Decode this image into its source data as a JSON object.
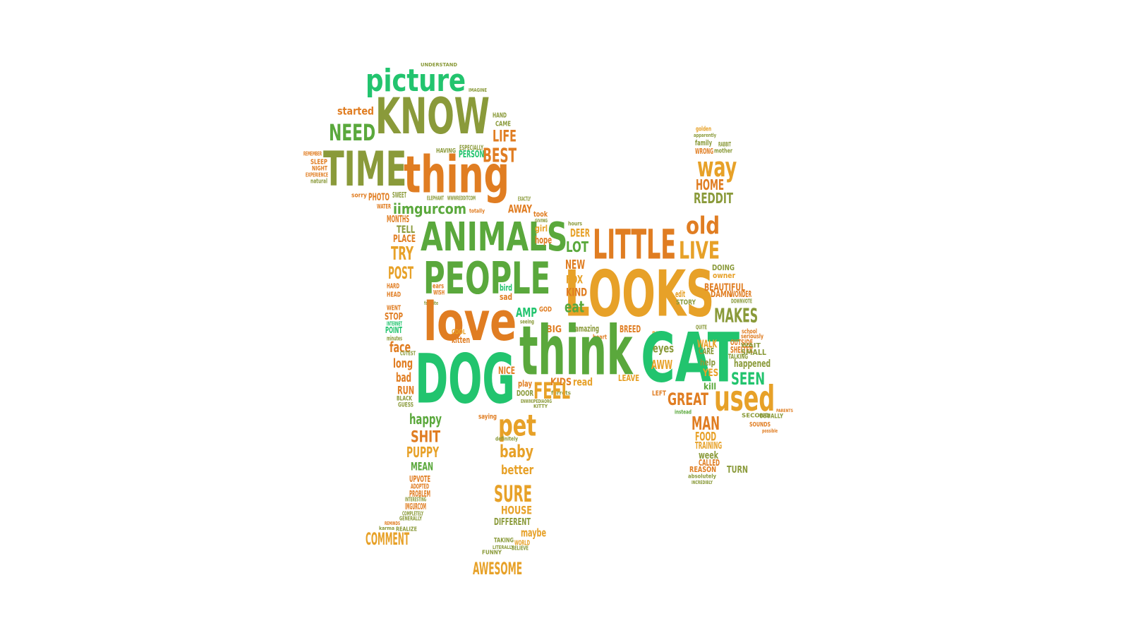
{
  "colors": {
    "background": "#ffffff",
    "green": "#5aa83c",
    "teal": "#22c46e",
    "orange": "#e07d22",
    "olive": "#8a9a3a",
    "amber": "#e7a128"
  },
  "words": [
    {
      "text": "UNDERSTAND",
      "color": "olive"
    },
    {
      "text": "picture",
      "color": "teal"
    },
    {
      "text": "IMAGINE",
      "color": "olive"
    },
    {
      "text": "started",
      "color": "orange"
    },
    {
      "text": "KNOW",
      "color": "olive"
    },
    {
      "text": "HAND",
      "color": "olive"
    },
    {
      "text": "CAME",
      "color": "olive"
    },
    {
      "text": "NEED",
      "color": "green"
    },
    {
      "text": "LIFE",
      "color": "orange"
    },
    {
      "text": "TIME",
      "color": "olive"
    },
    {
      "text": "thing",
      "color": "orange"
    },
    {
      "text": "BEST",
      "color": "orange"
    },
    {
      "text": "HAVING",
      "color": "olive"
    },
    {
      "text": "ESPECIALLY",
      "color": "olive"
    },
    {
      "text": "PERSON",
      "color": "teal"
    },
    {
      "text": "REMEMBER",
      "color": "orange"
    },
    {
      "text": "SLEEP",
      "color": "orange"
    },
    {
      "text": "NIGHT",
      "color": "orange"
    },
    {
      "text": "EXPERIENCE",
      "color": "orange"
    },
    {
      "text": "natural",
      "color": "olive"
    },
    {
      "text": "sorry",
      "color": "orange"
    },
    {
      "text": "PHOTO",
      "color": "orange"
    },
    {
      "text": "SWEET",
      "color": "olive"
    },
    {
      "text": "ELEPHANT",
      "color": "olive"
    },
    {
      "text": "WWWREDDITCOM",
      "color": "olive"
    },
    {
      "text": "WATER",
      "color": "orange"
    },
    {
      "text": "iimgurcom",
      "color": "green"
    },
    {
      "text": "totally",
      "color": "orange"
    },
    {
      "text": "EXACTLY",
      "color": "olive"
    },
    {
      "text": "AWAY",
      "color": "orange"
    },
    {
      "text": "MONTHS",
      "color": "orange"
    },
    {
      "text": "TELL",
      "color": "olive"
    },
    {
      "text": "PLACE",
      "color": "orange"
    },
    {
      "text": "ANIMALS",
      "color": "green"
    },
    {
      "text": "took",
      "color": "orange"
    },
    {
      "text": "GIVING",
      "color": "olive"
    },
    {
      "text": "girl",
      "color": "amber"
    },
    {
      "text": "hope",
      "color": "orange"
    },
    {
      "text": "hours",
      "color": "olive"
    },
    {
      "text": "DEER",
      "color": "amber"
    },
    {
      "text": "LOT",
      "color": "green"
    },
    {
      "text": "LITTLE",
      "color": "orange"
    },
    {
      "text": "LIVE",
      "color": "amber"
    },
    {
      "text": "old",
      "color": "orange"
    },
    {
      "text": "TRY",
      "color": "amber"
    },
    {
      "text": "POST",
      "color": "amber"
    },
    {
      "text": "PEOPLE",
      "color": "green"
    },
    {
      "text": "NEW",
      "color": "orange"
    },
    {
      "text": "LOOKS",
      "color": "amber"
    },
    {
      "text": "HARD",
      "color": "orange"
    },
    {
      "text": "HEAD",
      "color": "orange"
    },
    {
      "text": "ears",
      "color": "orange"
    },
    {
      "text": "WISH",
      "color": "orange"
    },
    {
      "text": "favorite",
      "color": "olive"
    },
    {
      "text": "bird",
      "color": "teal"
    },
    {
      "text": "sad",
      "color": "orange"
    },
    {
      "text": "FOX",
      "color": "amber"
    },
    {
      "text": "KIND",
      "color": "orange"
    },
    {
      "text": "eat",
      "color": "green"
    },
    {
      "text": "WENT",
      "color": "orange"
    },
    {
      "text": "STOP",
      "color": "orange"
    },
    {
      "text": "INTERNET",
      "color": "teal"
    },
    {
      "text": "POINT",
      "color": "teal"
    },
    {
      "text": "minutes",
      "color": "olive"
    },
    {
      "text": "love",
      "color": "orange"
    },
    {
      "text": "AMP",
      "color": "teal"
    },
    {
      "text": "GOD",
      "color": "orange"
    },
    {
      "text": "seeing",
      "color": "olive"
    },
    {
      "text": "face",
      "color": "orange"
    },
    {
      "text": "CUTEST",
      "color": "olive"
    },
    {
      "text": "COOL",
      "color": "amber"
    },
    {
      "text": "kitten",
      "color": "orange"
    },
    {
      "text": "BIG",
      "color": "orange"
    },
    {
      "text": "amazing",
      "color": "olive"
    },
    {
      "text": "heart",
      "color": "orange"
    },
    {
      "text": "think",
      "color": "green"
    },
    {
      "text": "BREED",
      "color": "orange"
    },
    {
      "text": "long",
      "color": "orange"
    },
    {
      "text": "DOG",
      "color": "teal"
    },
    {
      "text": "REAL",
      "color": "amber"
    },
    {
      "text": "CAT",
      "color": "teal"
    },
    {
      "text": "QUITE",
      "color": "olive"
    },
    {
      "text": "bad",
      "color": "orange"
    },
    {
      "text": "RUN",
      "color": "orange"
    },
    {
      "text": "NICE",
      "color": "orange"
    },
    {
      "text": "play",
      "color": "orange"
    },
    {
      "text": "DOOR",
      "color": "olive"
    },
    {
      "text": "KIDS",
      "color": "orange"
    },
    {
      "text": "read",
      "color": "amber"
    },
    {
      "text": "ferrets",
      "color": "olive"
    },
    {
      "text": "LEAVE",
      "color": "amber"
    },
    {
      "text": "BLACK",
      "color": "olive"
    },
    {
      "text": "GUESS",
      "color": "olive"
    },
    {
      "text": "FEEL",
      "color": "amber"
    },
    {
      "text": "ENWIKIPEDIAORG",
      "color": "olive"
    },
    {
      "text": "KITTY",
      "color": "olive"
    },
    {
      "text": "happy",
      "color": "green"
    },
    {
      "text": "saying",
      "color": "orange"
    },
    {
      "text": "pet",
      "color": "amber"
    },
    {
      "text": "SHIT",
      "color": "orange"
    },
    {
      "text": "definitely",
      "color": "olive"
    },
    {
      "text": "PUPPY",
      "color": "amber"
    },
    {
      "text": "baby",
      "color": "amber"
    },
    {
      "text": "MEAN",
      "color": "green"
    },
    {
      "text": "better",
      "color": "amber"
    },
    {
      "text": "UPVOTE",
      "color": "orange"
    },
    {
      "text": "ADOPTED",
      "color": "orange"
    },
    {
      "text": "PROBLEM",
      "color": "orange"
    },
    {
      "text": "INTERESTING",
      "color": "olive"
    },
    {
      "text": "IMGURCOM",
      "color": "orange"
    },
    {
      "text": "COMPLETELY",
      "color": "olive"
    },
    {
      "text": "SURE",
      "color": "amber"
    },
    {
      "text": "HOUSE",
      "color": "amber"
    },
    {
      "text": "DIFFERENT",
      "color": "olive"
    },
    {
      "text": "GENERALLY",
      "color": "olive"
    },
    {
      "text": "REMINDS",
      "color": "orange"
    },
    {
      "text": "REALIZE",
      "color": "olive"
    },
    {
      "text": "karma",
      "color": "olive"
    },
    {
      "text": "maybe",
      "color": "amber"
    },
    {
      "text": "TAKING",
      "color": "olive"
    },
    {
      "text": "WORLD",
      "color": "amber"
    },
    {
      "text": "LITERALLY",
      "color": "olive"
    },
    {
      "text": "BELIEVE",
      "color": "olive"
    },
    {
      "text": "COMMENT",
      "color": "amber"
    },
    {
      "text": "FUNNY",
      "color": "olive"
    },
    {
      "text": "AWESOME",
      "color": "amber"
    },
    {
      "text": "golden",
      "color": "amber"
    },
    {
      "text": "apparently",
      "color": "olive"
    },
    {
      "text": "family",
      "color": "olive"
    },
    {
      "text": "RABBIT",
      "color": "olive"
    },
    {
      "text": "WRONG",
      "color": "orange"
    },
    {
      "text": "mother",
      "color": "olive"
    },
    {
      "text": "way",
      "color": "amber"
    },
    {
      "text": "HOME",
      "color": "orange"
    },
    {
      "text": "REDDIT",
      "color": "olive"
    },
    {
      "text": "DOING",
      "color": "olive"
    },
    {
      "text": "owner",
      "color": "amber"
    },
    {
      "text": "edit",
      "color": "amber"
    },
    {
      "text": "BEAUTIFUL",
      "color": "orange"
    },
    {
      "text": "DAMN",
      "color": "orange"
    },
    {
      "text": "WONDER",
      "color": "orange"
    },
    {
      "text": "STORY",
      "color": "olive"
    },
    {
      "text": "DOWNVOTE",
      "color": "olive"
    },
    {
      "text": "MAKES",
      "color": "olive"
    },
    {
      "text": "school",
      "color": "orange"
    },
    {
      "text": "eyes",
      "color": "olive"
    },
    {
      "text": "seriously",
      "color": "orange"
    },
    {
      "text": "WALK",
      "color": "amber"
    },
    {
      "text": "OUTSIDE",
      "color": "orange"
    },
    {
      "text": "WAIT",
      "color": "olive"
    },
    {
      "text": "CARE",
      "color": "olive"
    },
    {
      "text": "SHELTER",
      "color": "orange"
    },
    {
      "text": "SMALL",
      "color": "olive"
    },
    {
      "text": "TALKING",
      "color": "olive"
    },
    {
      "text": "AWW",
      "color": "amber"
    },
    {
      "text": "happened",
      "color": "olive"
    },
    {
      "text": "help",
      "color": "olive"
    },
    {
      "text": "YES",
      "color": "amber"
    },
    {
      "text": "SEEN",
      "color": "teal"
    },
    {
      "text": "kill",
      "color": "green"
    },
    {
      "text": "LEFT",
      "color": "orange"
    },
    {
      "text": "GREAT",
      "color": "orange"
    },
    {
      "text": "used",
      "color": "amber"
    },
    {
      "text": "instead",
      "color": "green"
    },
    {
      "text": "PARENTS",
      "color": "orange"
    },
    {
      "text": "SECOND",
      "color": "olive"
    },
    {
      "text": "USUALLY",
      "color": "olive"
    },
    {
      "text": "SOUNDS",
      "color": "orange"
    },
    {
      "text": "possible",
      "color": "orange"
    },
    {
      "text": "MAN",
      "color": "orange"
    },
    {
      "text": "FOOD",
      "color": "amber"
    },
    {
      "text": "TRAINING",
      "color": "amber"
    },
    {
      "text": "week",
      "color": "olive"
    },
    {
      "text": "CALLED",
      "color": "orange"
    },
    {
      "text": "REASON",
      "color": "orange"
    },
    {
      "text": "TURN",
      "color": "olive"
    },
    {
      "text": "absolutely",
      "color": "olive"
    },
    {
      "text": "INCREDIBLY",
      "color": "olive"
    }
  ]
}
